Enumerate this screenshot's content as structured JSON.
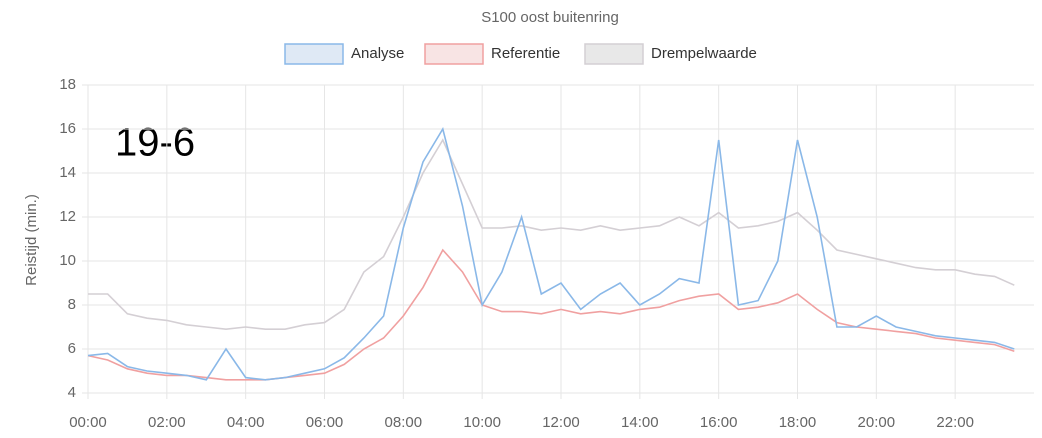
{
  "chart_data": {
    "type": "line",
    "title": "S100 oost buitenring",
    "annotation": "19-6",
    "y_label": "Reistijd (min.)",
    "categories": [
      "00:00",
      null,
      null,
      null,
      "02:00",
      null,
      null,
      null,
      "04:00",
      null,
      null,
      null,
      "06:00",
      null,
      null,
      null,
      "08:00",
      null,
      null,
      null,
      "10:00",
      null,
      null,
      null,
      "12:00",
      null,
      null,
      null,
      "14:00",
      null,
      null,
      null,
      "16:00",
      null,
      null,
      null,
      "18:00",
      null,
      null,
      null,
      "20:00",
      null,
      null,
      null,
      "22:00",
      null,
      null,
      null
    ],
    "series": [
      {
        "name": "Analyse",
        "color": "#8ab8e8",
        "fill": "#dfe9f5",
        "values": [
          5.7,
          5.8,
          5.2,
          5.0,
          4.9,
          4.8,
          4.6,
          6.0,
          4.7,
          4.6,
          4.7,
          4.9,
          5.1,
          5.6,
          6.5,
          7.5,
          11.5,
          14.5,
          16.0,
          12.5,
          8.0,
          9.5,
          12.0,
          8.5,
          9.0,
          7.8,
          8.5,
          9.0,
          8.0,
          8.5,
          9.2,
          9.0,
          15.5,
          8.0,
          8.2,
          10.0,
          15.5,
          12.0,
          7.0,
          7.0,
          7.5,
          7.0,
          6.8,
          6.6,
          6.5,
          6.4,
          6.3,
          6.0
        ]
      },
      {
        "name": "Referentie",
        "color": "#f0a0a0",
        "fill": "#f8e4e4",
        "values": [
          5.7,
          5.5,
          5.1,
          4.9,
          4.8,
          4.8,
          4.7,
          4.6,
          4.6,
          4.6,
          4.7,
          4.8,
          4.9,
          5.3,
          6.0,
          6.5,
          7.5,
          8.8,
          10.5,
          9.5,
          8.0,
          7.7,
          7.7,
          7.6,
          7.8,
          7.6,
          7.7,
          7.6,
          7.8,
          7.9,
          8.2,
          8.4,
          8.5,
          7.8,
          7.9,
          8.1,
          8.5,
          7.8,
          7.2,
          7.0,
          6.9,
          6.8,
          6.7,
          6.5,
          6.4,
          6.3,
          6.2,
          5.9
        ]
      },
      {
        "name": "Drempelwaarde",
        "color": "#d4cfd4",
        "fill": "#e8e8e8",
        "values": [
          8.5,
          8.5,
          7.6,
          7.4,
          7.3,
          7.1,
          7.0,
          6.9,
          7.0,
          6.9,
          6.9,
          7.1,
          7.2,
          7.8,
          9.5,
          10.2,
          12.0,
          14.0,
          15.5,
          13.5,
          11.5,
          11.5,
          11.6,
          11.4,
          11.5,
          11.4,
          11.6,
          11.4,
          11.5,
          11.6,
          12.0,
          11.6,
          12.2,
          11.5,
          11.6,
          11.8,
          12.2,
          11.4,
          10.5,
          10.3,
          10.1,
          9.9,
          9.7,
          9.6,
          9.6,
          9.4,
          9.3,
          8.9
        ]
      }
    ],
    "ylim": [
      4,
      18
    ],
    "yticks": [
      4,
      6,
      8,
      10,
      12,
      14,
      16,
      18
    ],
    "grid": true
  }
}
